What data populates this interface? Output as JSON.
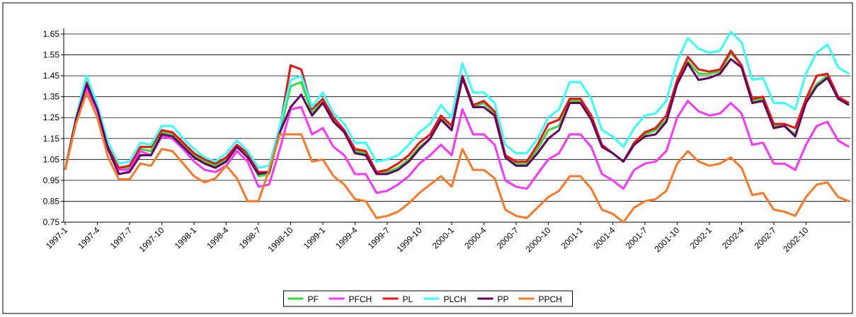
{
  "chart_data": {
    "type": "line",
    "categories": [
      "1997-1",
      null,
      null,
      "1997-4",
      null,
      null,
      "1997-7",
      null,
      null,
      "1997-10",
      null,
      null,
      "1998-1",
      null,
      null,
      "1998-4",
      null,
      null,
      "1998-7",
      null,
      null,
      "1998-10",
      null,
      null,
      "1999-1",
      null,
      null,
      "1999-4",
      null,
      null,
      "1999-7",
      null,
      null,
      "1999-10",
      null,
      null,
      "2000-1",
      null,
      null,
      "2000-4",
      null,
      null,
      "2000-7",
      null,
      null,
      "2000-10",
      null,
      null,
      "2001-1",
      null,
      null,
      "2001-4",
      null,
      null,
      "2001-7",
      null,
      null,
      "2001-10",
      null,
      null,
      "2002-1",
      null,
      null,
      "2002-4",
      null,
      null,
      "2002-7",
      null,
      null,
      "2002-10",
      null,
      null,
      null,
      null
    ],
    "series": [
      {
        "name": "PF",
        "color": "#33dd33",
        "values": [
          1.0,
          1.24,
          1.41,
          1.3,
          1.11,
          1.0,
          1.01,
          1.1,
          1.09,
          1.18,
          1.17,
          1.12,
          1.07,
          1.04,
          1.02,
          1.05,
          1.11,
          1.07,
          0.97,
          0.98,
          1.18,
          1.4,
          1.42,
          1.27,
          1.33,
          1.24,
          1.18,
          1.09,
          1.08,
          0.99,
          0.99,
          1.01,
          1.05,
          1.11,
          1.15,
          1.25,
          1.19,
          1.44,
          1.3,
          1.32,
          1.27,
          1.07,
          1.03,
          1.03,
          1.1,
          1.19,
          1.21,
          1.33,
          1.33,
          1.25,
          1.11,
          1.08,
          1.04,
          1.13,
          1.17,
          1.19,
          1.24,
          1.42,
          1.52,
          1.46,
          1.46,
          1.47,
          1.56,
          1.5,
          1.33,
          1.34,
          1.21,
          1.21,
          1.17,
          1.33,
          1.41,
          1.45,
          1.34,
          1.31
        ]
      },
      {
        "name": "PFCH",
        "color": "#ff33ff",
        "values": [
          1.0,
          1.24,
          1.39,
          1.28,
          1.1,
          1.0,
          1.0,
          1.09,
          1.07,
          1.16,
          1.15,
          1.1,
          1.04,
          1.0,
          0.99,
          1.02,
          1.09,
          1.04,
          0.92,
          0.93,
          1.1,
          1.29,
          1.3,
          1.17,
          1.2,
          1.11,
          1.07,
          0.98,
          0.98,
          0.89,
          0.9,
          0.93,
          0.97,
          1.03,
          1.07,
          1.12,
          1.07,
          1.29,
          1.17,
          1.17,
          1.12,
          0.95,
          0.92,
          0.91,
          0.98,
          1.05,
          1.08,
          1.17,
          1.17,
          1.11,
          0.98,
          0.95,
          0.91,
          1.0,
          1.03,
          1.04,
          1.09,
          1.25,
          1.33,
          1.28,
          1.26,
          1.27,
          1.32,
          1.27,
          1.12,
          1.13,
          1.03,
          1.03,
          1.0,
          1.12,
          1.21,
          1.23,
          1.14,
          1.11
        ]
      },
      {
        "name": "PL",
        "color": "#ee1111",
        "values": [
          1.0,
          1.24,
          1.42,
          1.3,
          1.12,
          1.01,
          1.02,
          1.11,
          1.11,
          1.19,
          1.18,
          1.13,
          1.08,
          1.05,
          1.03,
          1.06,
          1.12,
          1.08,
          0.99,
          0.99,
          1.2,
          1.5,
          1.48,
          1.29,
          1.34,
          1.25,
          1.19,
          1.1,
          1.09,
          0.99,
          1.0,
          1.03,
          1.07,
          1.13,
          1.17,
          1.26,
          1.21,
          1.45,
          1.31,
          1.33,
          1.28,
          1.07,
          1.04,
          1.04,
          1.12,
          1.22,
          1.24,
          1.34,
          1.34,
          1.26,
          1.12,
          1.08,
          1.04,
          1.13,
          1.18,
          1.2,
          1.26,
          1.43,
          1.54,
          1.48,
          1.47,
          1.48,
          1.57,
          1.5,
          1.34,
          1.35,
          1.22,
          1.22,
          1.2,
          1.34,
          1.45,
          1.46,
          1.35,
          1.32
        ]
      },
      {
        "name": "PLCH",
        "color": "#33ffff",
        "values": [
          1.0,
          1.25,
          1.45,
          1.31,
          1.13,
          1.03,
          1.04,
          1.13,
          1.12,
          1.21,
          1.21,
          1.15,
          1.1,
          1.06,
          1.04,
          1.08,
          1.14,
          1.09,
          1.01,
          1.02,
          1.21,
          1.43,
          1.45,
          1.3,
          1.37,
          1.27,
          1.22,
          1.13,
          1.13,
          1.04,
          1.05,
          1.07,
          1.12,
          1.18,
          1.22,
          1.31,
          1.25,
          1.51,
          1.37,
          1.37,
          1.32,
          1.12,
          1.08,
          1.08,
          1.15,
          1.25,
          1.29,
          1.42,
          1.42,
          1.34,
          1.19,
          1.16,
          1.11,
          1.2,
          1.26,
          1.27,
          1.33,
          1.52,
          1.63,
          1.58,
          1.56,
          1.57,
          1.66,
          1.61,
          1.43,
          1.44,
          1.32,
          1.32,
          1.29,
          1.46,
          1.56,
          1.6,
          1.49,
          1.46
        ]
      },
      {
        "name": "PP",
        "color": "#660066",
        "values": [
          1.0,
          1.24,
          1.41,
          1.29,
          1.1,
          0.98,
          0.99,
          1.07,
          1.07,
          1.17,
          1.16,
          1.11,
          1.06,
          1.03,
          1.01,
          1.04,
          1.11,
          1.06,
          0.98,
          0.99,
          1.18,
          1.3,
          1.36,
          1.26,
          1.32,
          1.23,
          1.18,
          1.08,
          1.07,
          0.98,
          0.98,
          1.0,
          1.04,
          1.1,
          1.15,
          1.24,
          1.19,
          1.44,
          1.3,
          1.3,
          1.26,
          1.06,
          1.02,
          1.02,
          1.08,
          1.15,
          1.19,
          1.32,
          1.32,
          1.24,
          1.11,
          1.08,
          1.04,
          1.12,
          1.16,
          1.17,
          1.23,
          1.41,
          1.51,
          1.43,
          1.44,
          1.46,
          1.53,
          1.49,
          1.32,
          1.33,
          1.2,
          1.21,
          1.16,
          1.32,
          1.4,
          1.44,
          1.34,
          1.31
        ]
      },
      {
        "name": "PPCH",
        "color": "#ff7722",
        "values": [
          1.0,
          1.22,
          1.37,
          1.25,
          1.06,
          0.955,
          0.955,
          1.03,
          1.02,
          1.1,
          1.09,
          1.03,
          0.97,
          0.94,
          0.96,
          1.02,
          0.96,
          0.85,
          0.85,
          1.0,
          1.17,
          1.17,
          1.17,
          1.04,
          1.05,
          0.97,
          0.93,
          0.86,
          0.85,
          0.77,
          0.78,
          0.8,
          0.84,
          0.89,
          0.93,
          0.97,
          0.92,
          1.1,
          1.0,
          1.0,
          0.96,
          0.81,
          0.78,
          0.77,
          0.82,
          0.87,
          0.9,
          0.97,
          0.97,
          0.91,
          0.81,
          0.79,
          0.75,
          0.82,
          0.85,
          0.86,
          0.9,
          1.03,
          1.09,
          1.04,
          1.02,
          1.03,
          1.06,
          1.01,
          0.88,
          0.89,
          0.81,
          0.8,
          0.78,
          0.87,
          0.93,
          0.94,
          0.87,
          0.85
        ]
      }
    ],
    "ylim": [
      0.75,
      1.65
    ],
    "yticks": [
      0.75,
      0.85,
      0.95,
      1.05,
      1.15,
      1.25,
      1.35,
      1.45,
      1.55,
      1.65
    ],
    "grid": true,
    "legend": "bottom"
  }
}
